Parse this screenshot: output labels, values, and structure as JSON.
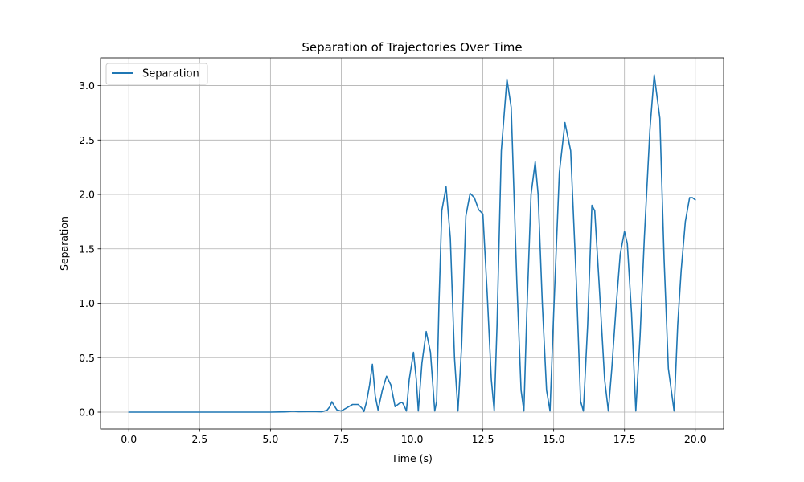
{
  "chart_data": {
    "type": "line",
    "title": "Separation of Trajectories Over Time",
    "xlabel": "Time (s)",
    "ylabel": "Separation",
    "xlim": [
      -1.0,
      21.0
    ],
    "ylim": [
      -0.155,
      3.255
    ],
    "xticks": [
      0.0,
      2.5,
      5.0,
      7.5,
      10.0,
      12.5,
      15.0,
      17.5,
      20.0
    ],
    "xtick_labels": [
      "0.0",
      "2.5",
      "5.0",
      "7.5",
      "10.0",
      "12.5",
      "15.0",
      "17.5",
      "20.0"
    ],
    "yticks": [
      0.0,
      0.5,
      1.0,
      1.5,
      2.0,
      2.5,
      3.0
    ],
    "ytick_labels": [
      "0.0",
      "0.5",
      "1.0",
      "1.5",
      "2.0",
      "2.5",
      "3.0"
    ],
    "grid": true,
    "legend": {
      "placement": "upper-left"
    },
    "series": [
      {
        "name": "Separation",
        "color": "#1f77b4",
        "x": [
          0,
          1,
          2,
          3,
          4,
          5,
          5.5,
          5.8,
          6.0,
          6.5,
          6.8,
          7.0,
          7.1,
          7.17,
          7.25,
          7.35,
          7.5,
          7.7,
          7.9,
          8.1,
          8.25,
          8.3,
          8.4,
          8.5,
          8.6,
          8.7,
          8.8,
          8.95,
          9.1,
          9.25,
          9.4,
          9.55,
          9.65,
          9.72,
          9.8,
          9.9,
          10.05,
          10.15,
          10.22,
          10.35,
          10.5,
          10.65,
          10.8,
          10.87,
          10.95,
          11.05,
          11.2,
          11.35,
          11.5,
          11.62,
          11.75,
          11.9,
          12.05,
          12.2,
          12.35,
          12.5,
          12.65,
          12.8,
          12.9,
          13.0,
          13.15,
          13.35,
          13.5,
          13.7,
          13.85,
          13.95,
          14.05,
          14.2,
          14.35,
          14.45,
          14.6,
          14.75,
          14.87,
          15.0,
          15.2,
          15.4,
          15.6,
          15.8,
          15.95,
          16.05,
          16.2,
          16.35,
          16.45,
          16.6,
          16.8,
          16.93,
          17.05,
          17.2,
          17.35,
          17.5,
          17.6,
          17.75,
          17.9,
          18.05,
          18.2,
          18.4,
          18.55,
          18.75,
          18.9,
          19.05,
          19.25,
          19.38,
          19.5,
          19.65,
          19.8,
          19.9,
          20.0
        ],
        "y": [
          0.0,
          0.0,
          0.0,
          0.0,
          0.0,
          0.0,
          0.002,
          0.008,
          0.004,
          0.006,
          0.003,
          0.018,
          0.05,
          0.095,
          0.06,
          0.02,
          0.01,
          0.04,
          0.07,
          0.07,
          0.03,
          0.005,
          0.1,
          0.25,
          0.44,
          0.15,
          0.02,
          0.2,
          0.33,
          0.25,
          0.05,
          0.08,
          0.09,
          0.06,
          0.01,
          0.3,
          0.55,
          0.3,
          0.01,
          0.45,
          0.74,
          0.55,
          0.01,
          0.1,
          1.0,
          1.85,
          2.07,
          1.6,
          0.5,
          0.01,
          0.6,
          1.8,
          2.01,
          1.97,
          1.86,
          1.82,
          1.1,
          0.3,
          0.01,
          0.8,
          2.4,
          3.06,
          2.8,
          1.2,
          0.2,
          0.01,
          0.9,
          2.0,
          2.3,
          2.0,
          1.0,
          0.2,
          0.01,
          0.9,
          2.2,
          2.66,
          2.4,
          1.2,
          0.1,
          0.01,
          0.8,
          1.9,
          1.85,
          1.2,
          0.3,
          0.01,
          0.4,
          0.95,
          1.45,
          1.66,
          1.55,
          0.9,
          0.01,
          0.7,
          1.6,
          2.6,
          3.1,
          2.7,
          1.4,
          0.4,
          0.01,
          0.8,
          1.3,
          1.75,
          1.97,
          1.97,
          1.95
        ]
      }
    ]
  }
}
